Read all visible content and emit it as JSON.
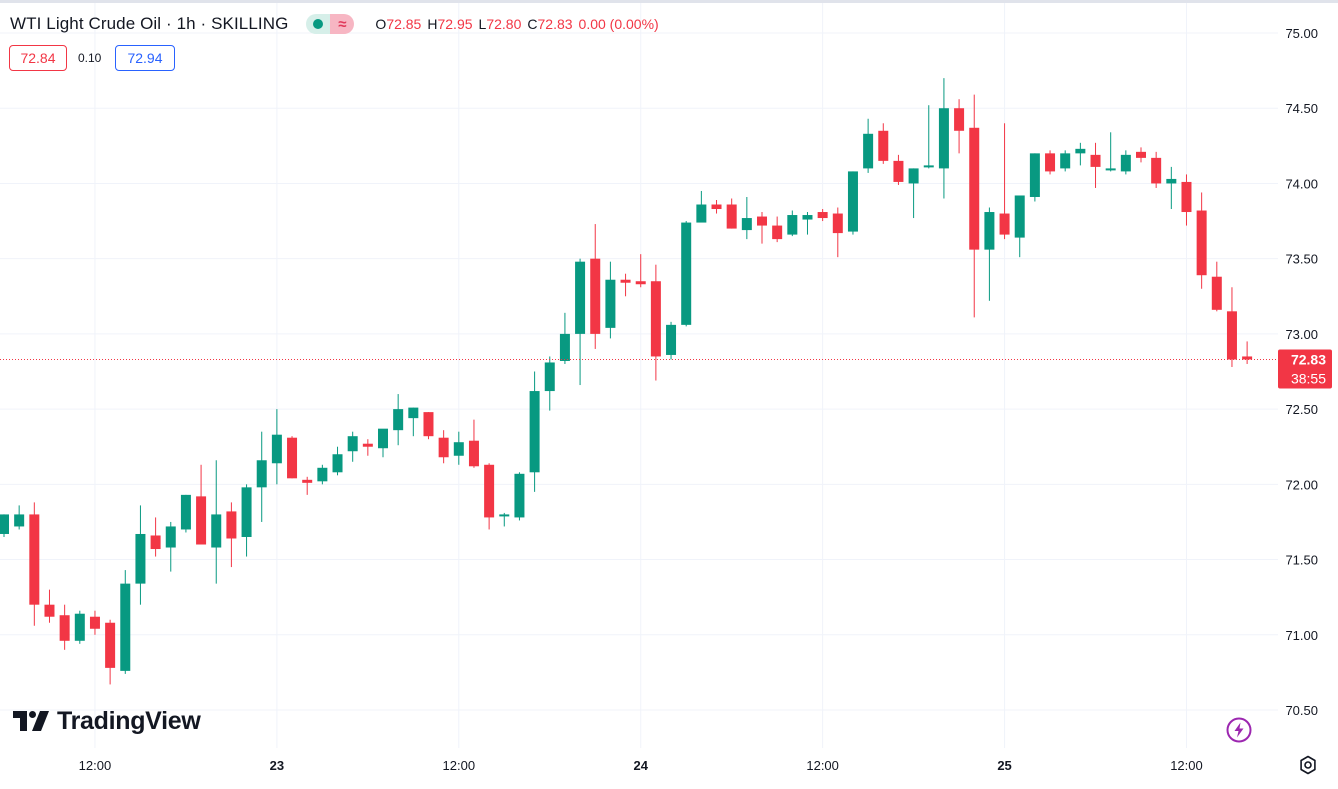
{
  "header": {
    "title": "WTI Light Crude Oil · 1h · SKILLING",
    "ohlc": {
      "o_label": "O",
      "o_value": "72.85",
      "h_label": "H",
      "h_value": "72.95",
      "l_label": "L",
      "l_value": "72.80",
      "c_label": "C",
      "c_value": "72.83",
      "change": "0.00 (0.00%)"
    },
    "bid": "72.84",
    "spread": "0.10",
    "ask": "72.94"
  },
  "logo_text": "TradingView",
  "price_label": {
    "price": "72.83",
    "countdown": "38:55"
  },
  "icons": [
    "market-status-dot-icon",
    "market-waves-icon",
    "tradingview-logo-icon",
    "flash-icon",
    "settings-gear-icon"
  ],
  "colors": {
    "up": "#089981",
    "down": "#f23645",
    "grid": "#f0f3fa",
    "ask": "#2962ff",
    "text": "#131722"
  },
  "chart_data": {
    "type": "candlestick",
    "y_axis": {
      "min": 70.5,
      "max": 75.0,
      "ticks": [
        "75.00",
        "74.50",
        "74.00",
        "73.50",
        "73.00",
        "72.50",
        "72.00",
        "71.50",
        "71.00",
        "70.50"
      ],
      "side": "right"
    },
    "x_axis": {
      "ticks": [
        {
          "label": "12:00",
          "bar": 6
        },
        {
          "label": "23",
          "bar": 18,
          "bold": true
        },
        {
          "label": "12:00",
          "bar": 30
        },
        {
          "label": "24",
          "bar": 42,
          "bold": true
        },
        {
          "label": "12:00",
          "bar": 54
        },
        {
          "label": "25",
          "bar": 66,
          "bold": true
        },
        {
          "label": "12:00",
          "bar": 78
        }
      ]
    },
    "last_price": 72.83,
    "grid": true,
    "candles": [
      [
        71.67,
        71.8,
        71.65,
        71.8
      ],
      [
        71.72,
        71.86,
        71.7,
        71.8
      ],
      [
        71.8,
        71.88,
        71.06,
        71.2
      ],
      [
        71.2,
        71.3,
        71.08,
        71.12
      ],
      [
        71.13,
        71.2,
        70.9,
        70.96
      ],
      [
        70.96,
        71.16,
        70.94,
        71.14
      ],
      [
        71.12,
        71.16,
        71.0,
        71.04
      ],
      [
        71.08,
        71.1,
        70.67,
        70.78
      ],
      [
        70.76,
        71.43,
        70.74,
        71.34
      ],
      [
        71.34,
        71.86,
        71.2,
        71.67
      ],
      [
        71.66,
        71.78,
        71.52,
        71.57
      ],
      [
        71.58,
        71.75,
        71.42,
        71.72
      ],
      [
        71.7,
        71.93,
        71.68,
        71.93
      ],
      [
        71.92,
        72.13,
        71.6,
        71.6
      ],
      [
        71.58,
        72.16,
        71.34,
        71.8
      ],
      [
        71.82,
        71.88,
        71.45,
        71.64
      ],
      [
        71.65,
        72.0,
        71.52,
        71.98
      ],
      [
        71.98,
        72.35,
        71.75,
        72.16
      ],
      [
        72.14,
        72.5,
        72.0,
        72.33
      ],
      [
        72.31,
        72.32,
        72.04,
        72.04
      ],
      [
        72.03,
        72.05,
        71.93,
        72.01
      ],
      [
        72.02,
        72.13,
        72.0,
        72.11
      ],
      [
        72.08,
        72.25,
        72.06,
        72.2
      ],
      [
        72.22,
        72.35,
        72.15,
        72.32
      ],
      [
        72.27,
        72.3,
        72.19,
        72.25
      ],
      [
        72.24,
        72.36,
        72.18,
        72.37
      ],
      [
        72.36,
        72.6,
        72.26,
        72.5
      ],
      [
        72.44,
        72.51,
        72.32,
        72.51
      ],
      [
        72.48,
        72.48,
        72.3,
        72.32
      ],
      [
        72.31,
        72.36,
        72.14,
        72.18
      ],
      [
        72.19,
        72.35,
        72.13,
        72.28
      ],
      [
        72.29,
        72.43,
        72.11,
        72.12
      ],
      [
        72.13,
        72.14,
        71.7,
        71.78
      ],
      [
        71.79,
        71.81,
        71.72,
        71.8
      ],
      [
        71.78,
        72.08,
        71.76,
        72.07
      ],
      [
        72.08,
        72.75,
        71.95,
        72.62
      ],
      [
        72.62,
        72.85,
        72.49,
        72.81
      ],
      [
        72.82,
        73.14,
        72.8,
        73.0
      ],
      [
        73.0,
        73.5,
        72.66,
        73.48
      ],
      [
        73.5,
        73.73,
        72.9,
        73.0
      ],
      [
        73.04,
        73.48,
        72.97,
        73.36
      ],
      [
        73.36,
        73.4,
        73.25,
        73.34
      ],
      [
        73.35,
        73.53,
        73.31,
        73.33
      ],
      [
        73.35,
        73.46,
        72.69,
        72.85
      ],
      [
        72.86,
        73.08,
        72.83,
        73.06
      ],
      [
        73.06,
        73.75,
        73.05,
        73.74
      ],
      [
        73.74,
        73.95,
        73.75,
        73.86
      ],
      [
        73.86,
        73.89,
        73.8,
        73.83
      ],
      [
        73.86,
        73.9,
        73.7,
        73.7
      ],
      [
        73.69,
        73.91,
        73.63,
        73.77
      ],
      [
        73.78,
        73.81,
        73.6,
        73.72
      ],
      [
        73.72,
        73.78,
        73.61,
        73.63
      ],
      [
        73.66,
        73.82,
        73.65,
        73.79
      ],
      [
        73.76,
        73.81,
        73.66,
        73.79
      ],
      [
        73.81,
        73.83,
        73.75,
        73.77
      ],
      [
        73.8,
        73.84,
        73.51,
        73.67
      ],
      [
        73.68,
        74.08,
        73.66,
        74.08
      ],
      [
        74.1,
        74.43,
        74.07,
        74.33
      ],
      [
        74.35,
        74.4,
        74.13,
        74.15
      ],
      [
        74.15,
        74.19,
        73.99,
        74.01
      ],
      [
        74.0,
        74.1,
        73.77,
        74.1
      ],
      [
        74.11,
        74.52,
        74.1,
        74.12
      ],
      [
        74.1,
        74.7,
        73.9,
        74.5
      ],
      [
        74.5,
        74.56,
        74.2,
        74.35
      ],
      [
        74.37,
        74.59,
        73.11,
        73.56
      ],
      [
        73.56,
        73.84,
        73.22,
        73.81
      ],
      [
        73.8,
        74.4,
        73.63,
        73.66
      ],
      [
        73.64,
        73.91,
        73.51,
        73.92
      ],
      [
        73.91,
        74.2,
        73.88,
        74.2
      ],
      [
        74.2,
        74.22,
        74.06,
        74.08
      ],
      [
        74.1,
        74.22,
        74.08,
        74.2
      ],
      [
        74.2,
        74.27,
        74.12,
        74.23
      ],
      [
        74.19,
        74.27,
        73.97,
        74.11
      ],
      [
        74.1,
        74.34,
        74.08,
        74.1
      ],
      [
        74.08,
        74.22,
        74.06,
        74.19
      ],
      [
        74.21,
        74.24,
        74.14,
        74.17
      ],
      [
        74.17,
        74.21,
        73.97,
        74.0
      ],
      [
        74.0,
        74.11,
        73.83,
        74.03
      ],
      [
        74.01,
        74.06,
        73.72,
        73.81
      ],
      [
        73.82,
        73.94,
        73.3,
        73.39
      ],
      [
        73.38,
        73.48,
        73.15,
        73.16
      ],
      [
        73.15,
        73.31,
        72.78,
        72.83
      ],
      [
        72.85,
        72.95,
        72.8,
        72.83
      ]
    ]
  }
}
